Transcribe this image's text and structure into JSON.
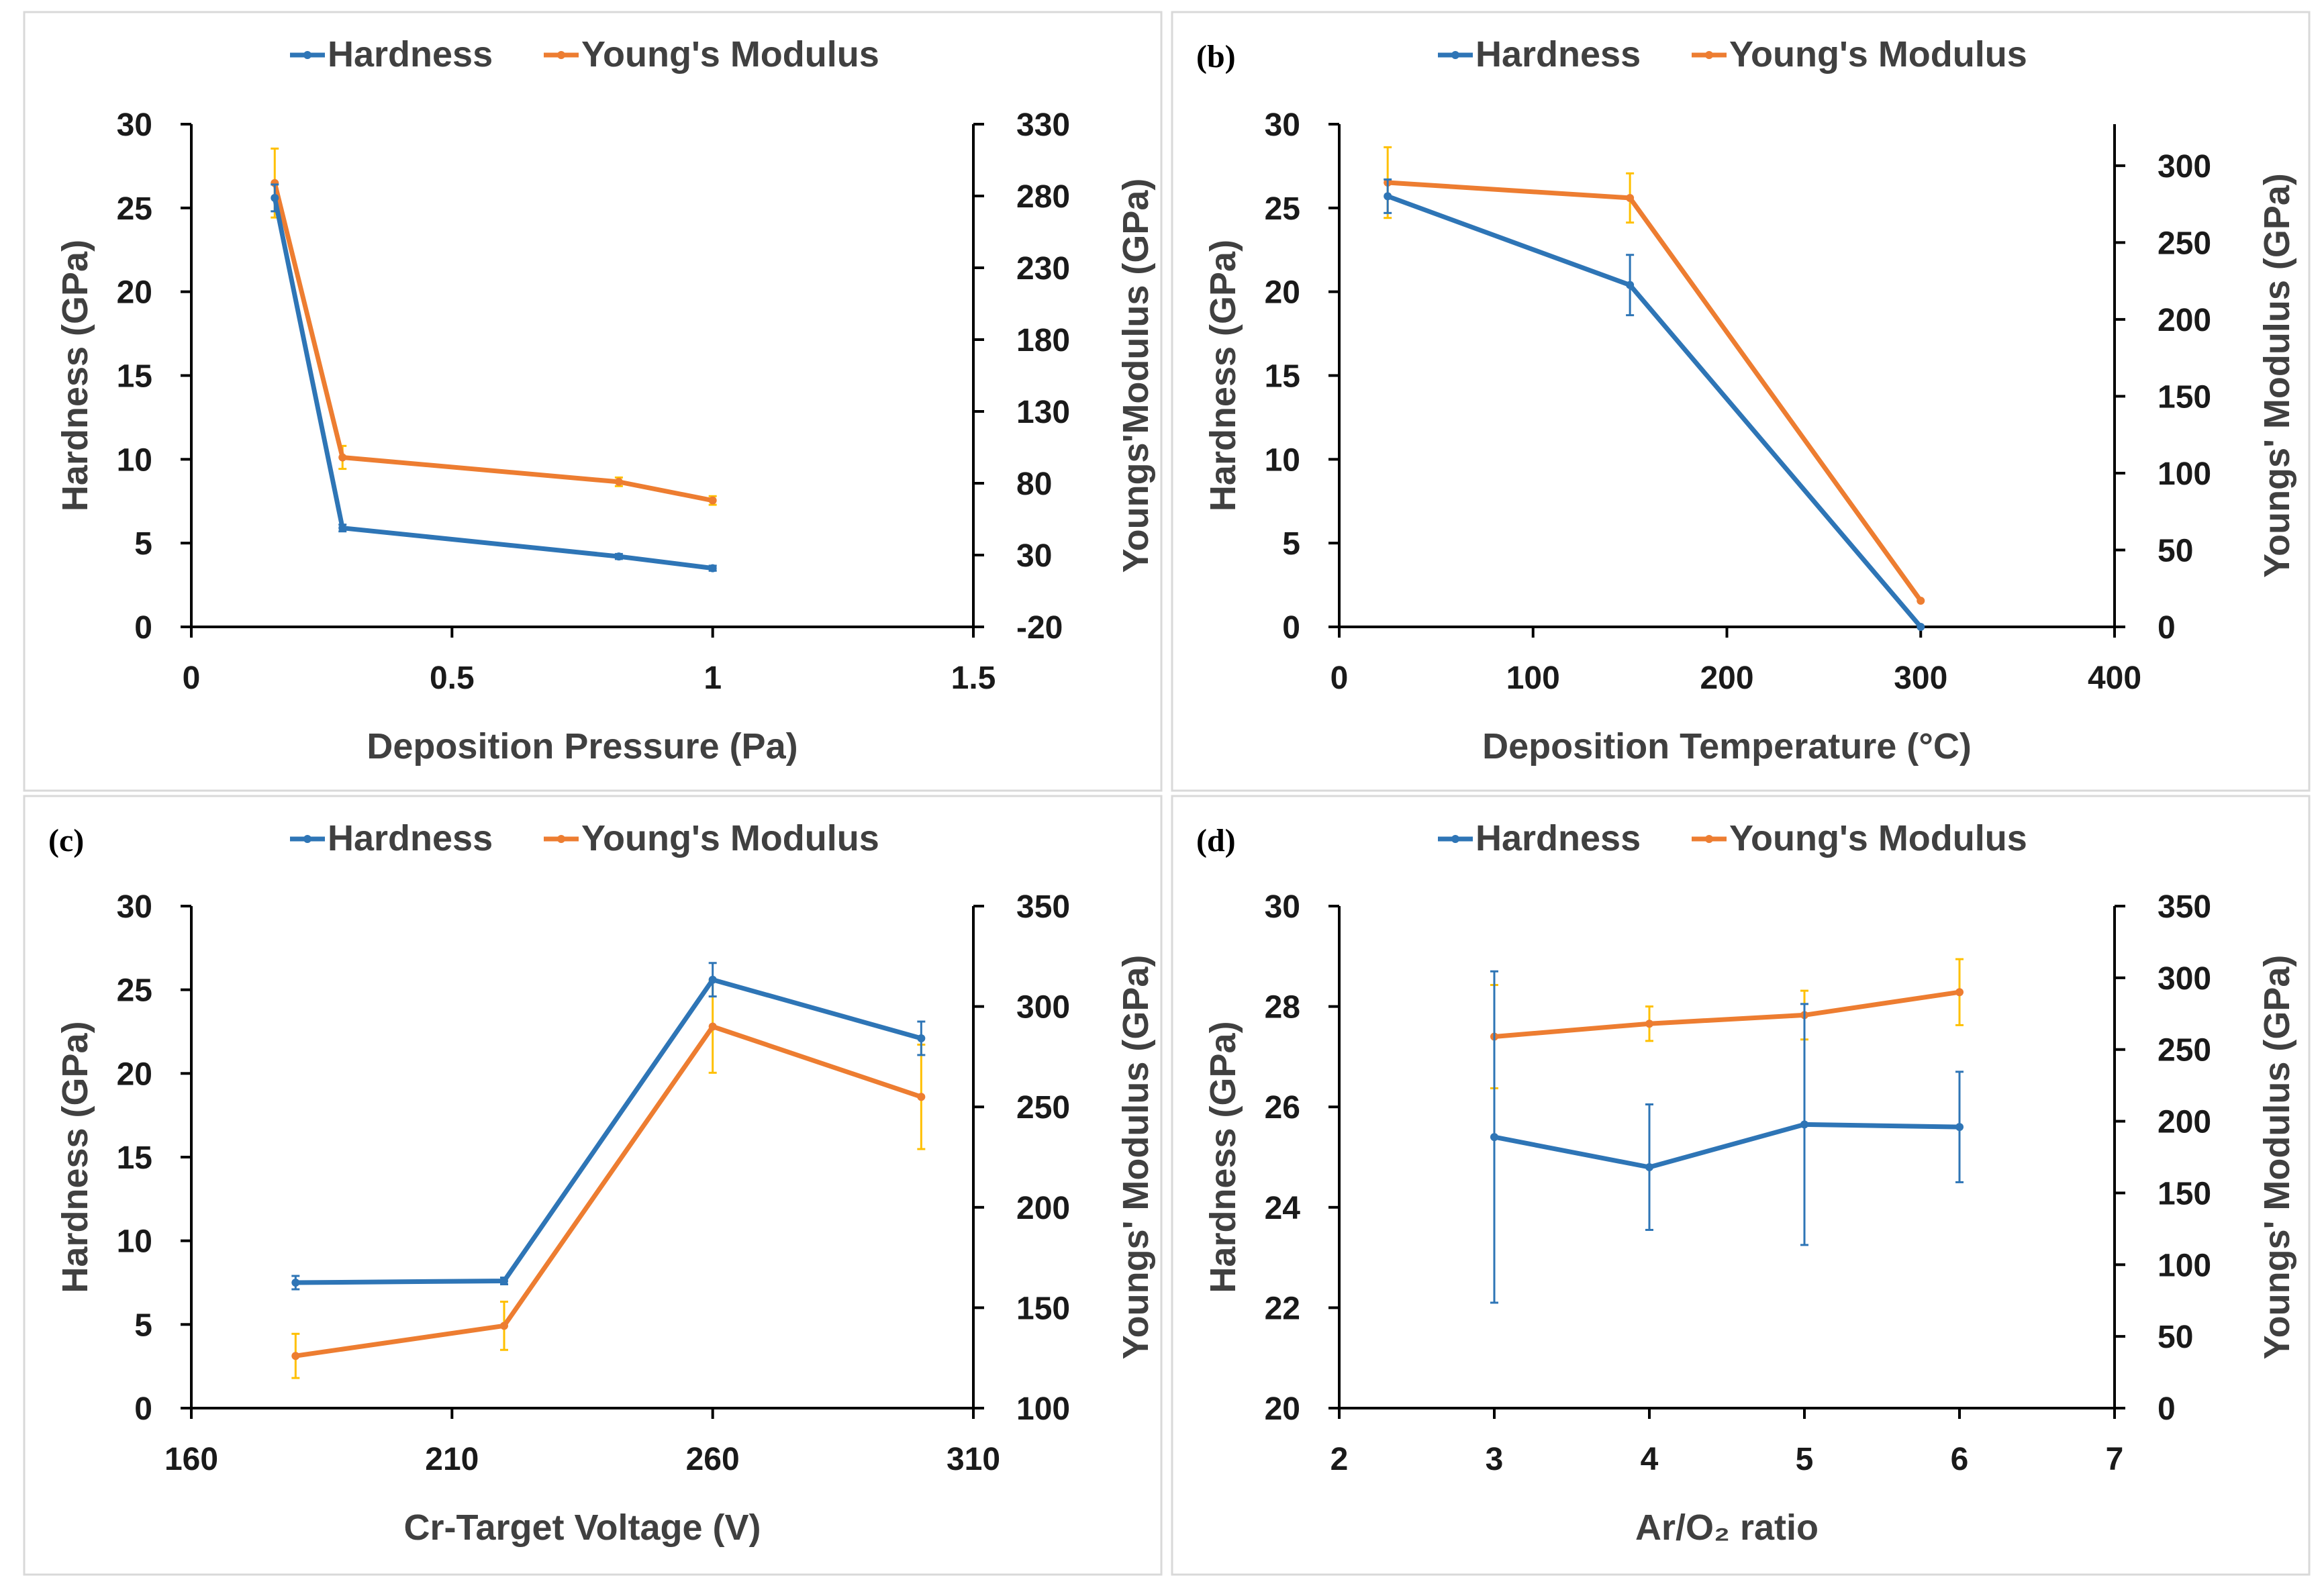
{
  "colors": {
    "hardness": "#2e75b6",
    "modulus": "#ed7d31",
    "modulus_err": "#ffc000",
    "axis": "#000000",
    "panel_border": "#d9d9d9"
  },
  "chart_data": [
    {
      "panel_label": "",
      "type": "line",
      "legend": [
        "Hardness",
        "Young's Modulus"
      ],
      "xlabel": "Deposition Pressure (Pa)",
      "ylabel": "Hardness (GPa)",
      "y2label": "Youngs'Modulus (GPa)",
      "xlim": [
        0,
        1.5
      ],
      "xticks": [
        0,
        0.5,
        1,
        1.5
      ],
      "xtick_labels": [
        "0",
        "0.5",
        "1",
        "1.5"
      ],
      "ylim": [
        0,
        30
      ],
      "yticks": [
        0,
        5,
        10,
        15,
        20,
        25,
        30
      ],
      "ytick_labels": [
        "0",
        "5",
        "10",
        "15",
        "20",
        "25",
        "30"
      ],
      "y2lim": [
        -20,
        330
      ],
      "y2ticks": [
        -20,
        30,
        80,
        130,
        180,
        230,
        280,
        330
      ],
      "y2tick_labels": [
        "-20",
        "30",
        "80",
        "130",
        "180",
        "230",
        "280",
        "330"
      ],
      "series": [
        {
          "name": "Hardness",
          "axis": "left",
          "x": [
            0.16,
            0.29,
            0.82,
            1.0
          ],
          "y": [
            25.6,
            5.9,
            4.2,
            3.5
          ],
          "err": [
            0.8,
            0.2,
            0.15,
            0.15
          ]
        },
        {
          "name": "Young's Modulus",
          "axis": "right",
          "x": [
            0.16,
            0.29,
            0.82,
            1.0
          ],
          "y": [
            289,
            98,
            81,
            68
          ],
          "err": [
            24,
            8,
            3,
            3
          ]
        }
      ]
    },
    {
      "panel_label": "(b)",
      "type": "line",
      "legend": [
        "Hardness",
        "Young's Modulus"
      ],
      "xlabel": "Deposition Temperature (°C)",
      "ylabel": "Hardness (GPa)",
      "y2label": "Youngs' Modulus (GPa)",
      "xlim": [
        0,
        400
      ],
      "xticks": [
        0,
        100,
        200,
        300,
        400
      ],
      "xtick_labels": [
        "0",
        "100",
        "200",
        "300",
        "400"
      ],
      "ylim": [
        0,
        30
      ],
      "yticks": [
        0,
        5,
        10,
        15,
        20,
        25,
        30
      ],
      "ytick_labels": [
        "0",
        "5",
        "10",
        "15",
        "20",
        "25",
        "30"
      ],
      "y2lim": [
        0,
        327
      ],
      "y2ticks": [
        0,
        50,
        100,
        150,
        200,
        250,
        300
      ],
      "y2tick_labels": [
        "0",
        "50",
        "100",
        "150",
        "200",
        "250",
        "300"
      ],
      "series": [
        {
          "name": "Hardness",
          "axis": "left",
          "x": [
            25,
            150,
            300
          ],
          "y": [
            25.7,
            20.4,
            0
          ],
          "err": [
            1.0,
            1.8,
            0
          ]
        },
        {
          "name": "Young's Modulus",
          "axis": "right",
          "x": [
            25,
            150,
            300
          ],
          "y": [
            289,
            279,
            17
          ],
          "err": [
            23,
            16,
            0
          ]
        }
      ]
    },
    {
      "panel_label": "(c)",
      "type": "line",
      "legend": [
        "Hardness",
        "Young's Modulus"
      ],
      "xlabel": "Cr-Target Voltage (V)",
      "ylabel": "Hardness (GPa)",
      "y2label": "Youngs' Modulus (GPa)",
      "xlim": [
        160,
        310
      ],
      "xticks": [
        160,
        210,
        260,
        310
      ],
      "xtick_labels": [
        "160",
        "210",
        "260",
        "310"
      ],
      "ylim": [
        0,
        30
      ],
      "yticks": [
        0,
        5,
        10,
        15,
        20,
        25,
        30
      ],
      "ytick_labels": [
        "0",
        "5",
        "10",
        "15",
        "20",
        "25",
        "30"
      ],
      "y2lim": [
        100,
        350
      ],
      "y2ticks": [
        100,
        150,
        200,
        250,
        300,
        350
      ],
      "y2tick_labels": [
        "100",
        "150",
        "200",
        "250",
        "300",
        "350"
      ],
      "series": [
        {
          "name": "Hardness",
          "axis": "left",
          "x": [
            180,
            220,
            260,
            300
          ],
          "y": [
            7.5,
            7.6,
            25.6,
            22.1
          ],
          "err": [
            0.4,
            0.2,
            1.0,
            1.0
          ]
        },
        {
          "name": "Young's Modulus",
          "axis": "right",
          "x": [
            180,
            220,
            260,
            300
          ],
          "y": [
            126,
            141,
            290,
            255
          ],
          "err": [
            11,
            12,
            23,
            26
          ]
        }
      ]
    },
    {
      "panel_label": "(d)",
      "type": "line",
      "legend": [
        "Hardness",
        "Young's Modulus"
      ],
      "xlabel": "Ar/O₂ ratio",
      "ylabel": "Hardness (GPa)",
      "y2label": "Youngs' Modulus (GPa)",
      "xlim": [
        2,
        7
      ],
      "xticks": [
        2,
        3,
        4,
        5,
        6,
        7
      ],
      "xtick_labels": [
        "2",
        "3",
        "4",
        "5",
        "6",
        "7"
      ],
      "ylim": [
        20,
        30
      ],
      "yticks": [
        20,
        22,
        24,
        26,
        28,
        30
      ],
      "ytick_labels": [
        "20",
        "22",
        "24",
        "26",
        "28",
        "30"
      ],
      "y2lim": [
        0,
        350
      ],
      "y2ticks": [
        0,
        50,
        100,
        150,
        200,
        250,
        300,
        350
      ],
      "y2tick_labels": [
        "0",
        "50",
        "100",
        "150",
        "200",
        "250",
        "300",
        "350"
      ],
      "series": [
        {
          "name": "Hardness",
          "axis": "left",
          "x": [
            3,
            4,
            5,
            6
          ],
          "y": [
            25.4,
            24.8,
            25.65,
            25.6
          ],
          "err": [
            3.3,
            1.25,
            2.4,
            1.1
          ]
        },
        {
          "name": "Young's Modulus",
          "axis": "right",
          "x": [
            3,
            4,
            5,
            6
          ],
          "y": [
            259,
            268,
            274,
            290
          ],
          "err": [
            36,
            12,
            17,
            23
          ]
        }
      ]
    }
  ]
}
